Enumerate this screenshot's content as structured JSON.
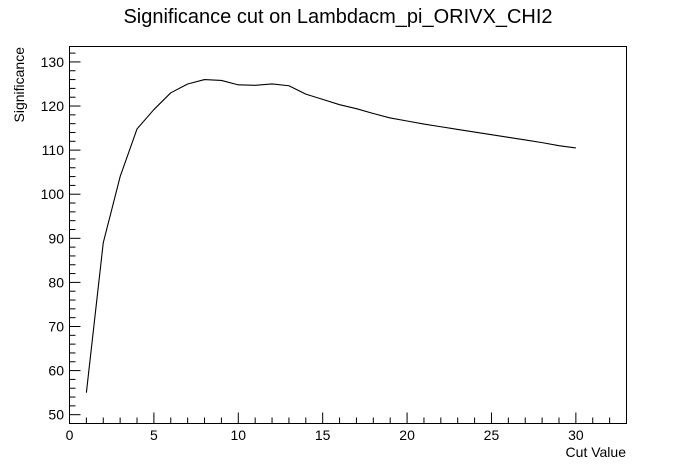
{
  "chart_data": {
    "type": "line",
    "title": "Significance cut on Lambdacm_pi_ORIVX_CHI2",
    "xlabel": "Cut Value",
    "ylabel": "Significance",
    "xlim": [
      0,
      33
    ],
    "ylim": [
      48,
      133.5
    ],
    "x_major_ticks": [
      0,
      5,
      10,
      15,
      20,
      25,
      30
    ],
    "y_major_ticks": [
      50,
      60,
      70,
      80,
      90,
      100,
      110,
      120,
      130
    ],
    "grid": false,
    "legend": "none",
    "line_color": "#000000",
    "series": [
      {
        "x": [
          1,
          2,
          3,
          4,
          5,
          6,
          7,
          8,
          9,
          10,
          11,
          12,
          13,
          14,
          15,
          16,
          17,
          18,
          19,
          20,
          21,
          22,
          23,
          24,
          25,
          26,
          27,
          28,
          29,
          30
        ],
        "values": [
          55.0,
          89.0,
          104.0,
          114.8,
          119.2,
          123.0,
          125.0,
          126.0,
          125.8,
          124.8,
          124.7,
          125.0,
          124.6,
          122.7,
          121.5,
          120.3,
          119.4,
          118.3,
          117.3,
          116.6,
          115.9,
          115.3,
          114.7,
          114.1,
          113.5,
          112.9,
          112.3,
          111.7,
          111.0,
          110.5
        ]
      }
    ]
  }
}
